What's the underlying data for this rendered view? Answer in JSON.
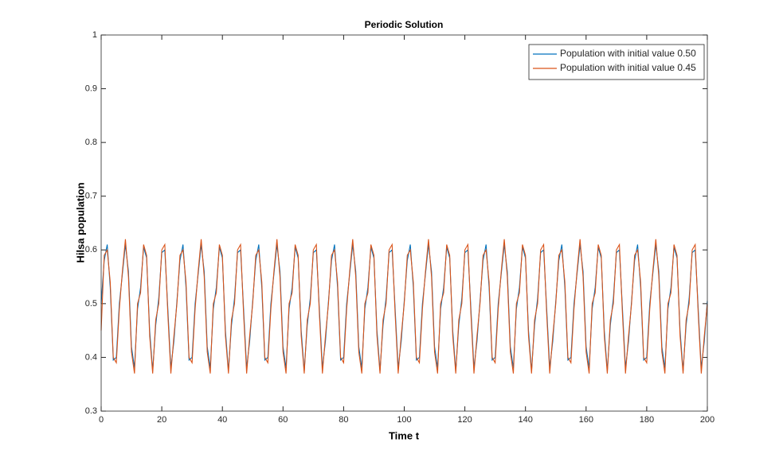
{
  "chart_data": {
    "type": "line",
    "title": "Periodic Solution",
    "x_label": "Time t",
    "y_label": "Hilsa population",
    "xlim": [
      0,
      200
    ],
    "ylim": [
      0.3,
      1
    ],
    "xticks": [
      0,
      20,
      40,
      60,
      80,
      100,
      120,
      140,
      160,
      180,
      200
    ],
    "yticks": [
      0.3,
      0.4,
      0.5,
      0.6,
      0.7,
      0.8,
      0.9,
      1
    ],
    "legend_position": "upper right",
    "x": [
      0,
      1,
      2,
      3,
      4,
      5,
      6,
      7,
      8,
      9,
      10,
      11,
      12,
      13,
      14,
      15,
      16,
      17,
      18,
      19,
      20,
      21,
      22,
      23,
      24,
      25,
      26,
      27,
      28,
      29,
      30,
      31,
      32,
      33,
      34,
      35,
      36,
      37,
      38,
      39,
      40,
      41,
      42,
      43,
      44,
      45,
      46,
      47,
      48,
      49,
      50,
      51,
      52,
      53,
      54,
      55,
      56,
      57,
      58,
      59,
      60,
      61,
      62,
      63,
      64,
      65,
      66,
      67,
      68,
      69,
      70,
      71,
      72,
      73,
      74,
      75,
      76,
      77,
      78,
      79,
      80,
      81,
      82,
      83,
      84,
      85,
      86,
      87,
      88,
      89,
      90,
      91,
      92,
      93,
      94,
      95,
      96,
      97,
      98,
      99,
      100,
      101,
      102,
      103,
      104,
      105,
      106,
      107,
      108,
      109,
      110,
      111,
      112,
      113,
      114,
      115,
      116,
      117,
      118,
      119,
      120,
      121,
      122,
      123,
      124,
      125,
      126,
      127,
      128,
      129,
      130,
      131,
      132,
      133,
      134,
      135,
      136,
      137,
      138,
      139,
      140,
      141,
      142,
      143,
      144,
      145,
      146,
      147,
      148,
      149,
      150,
      151,
      152,
      153,
      154,
      155,
      156,
      157,
      158,
      159,
      160,
      161,
      162,
      163,
      164,
      165,
      166,
      167,
      168,
      169,
      170,
      171,
      172,
      173,
      174,
      175,
      176,
      177,
      178,
      179,
      180,
      181,
      182,
      183,
      184,
      185,
      186,
      187,
      188,
      189,
      190,
      191,
      192,
      193,
      194,
      195,
      196,
      197,
      198,
      199,
      200
    ],
    "series": [
      {
        "name": "Population with initial value 0.50",
        "color": "#0072bd",
        "values": [
          0.5,
          0.58,
          0.61,
          0.53,
          0.395,
          0.4,
          0.5,
          0.555,
          0.61,
          0.56,
          0.42,
          0.38,
          0.49,
          0.53,
          0.605,
          0.585,
          0.45,
          0.375,
          0.46,
          0.51,
          0.595,
          0.6,
          0.49,
          0.38,
          0.43,
          0.505,
          0.58,
          0.61,
          0.53,
          0.395,
          0.4,
          0.5,
          0.555,
          0.61,
          0.56,
          0.42,
          0.38,
          0.49,
          0.53,
          0.605,
          0.585,
          0.45,
          0.375,
          0.46,
          0.51,
          0.595,
          0.6,
          0.49,
          0.38,
          0.43,
          0.505,
          0.58,
          0.61,
          0.53,
          0.395,
          0.4,
          0.5,
          0.555,
          0.61,
          0.56,
          0.42,
          0.38,
          0.49,
          0.53,
          0.605,
          0.585,
          0.45,
          0.375,
          0.46,
          0.51,
          0.595,
          0.6,
          0.49,
          0.38,
          0.43,
          0.505,
          0.58,
          0.61,
          0.53,
          0.395,
          0.4,
          0.5,
          0.555,
          0.61,
          0.56,
          0.42,
          0.38,
          0.49,
          0.53,
          0.605,
          0.585,
          0.45,
          0.375,
          0.46,
          0.51,
          0.595,
          0.6,
          0.49,
          0.38,
          0.43,
          0.505,
          0.58,
          0.61,
          0.53,
          0.395,
          0.4,
          0.5,
          0.555,
          0.61,
          0.56,
          0.42,
          0.38,
          0.49,
          0.53,
          0.605,
          0.585,
          0.45,
          0.375,
          0.46,
          0.51,
          0.595,
          0.6,
          0.49,
          0.38,
          0.43,
          0.505,
          0.58,
          0.61,
          0.53,
          0.395,
          0.4,
          0.5,
          0.555,
          0.61,
          0.56,
          0.42,
          0.38,
          0.49,
          0.53,
          0.605,
          0.585,
          0.45,
          0.375,
          0.46,
          0.51,
          0.595,
          0.6,
          0.49,
          0.38,
          0.43,
          0.505,
          0.58,
          0.61,
          0.53,
          0.395,
          0.4,
          0.5,
          0.555,
          0.61,
          0.56,
          0.42,
          0.38,
          0.49,
          0.53,
          0.605,
          0.585,
          0.45,
          0.375,
          0.46,
          0.51,
          0.595,
          0.6,
          0.49,
          0.38,
          0.43,
          0.505,
          0.58,
          0.61,
          0.53,
          0.395,
          0.4,
          0.5,
          0.555,
          0.61,
          0.56,
          0.42,
          0.38,
          0.49,
          0.53,
          0.605,
          0.585,
          0.45,
          0.375,
          0.46,
          0.51,
          0.595,
          0.6,
          0.49,
          0.38,
          0.43,
          0.505
        ]
      },
      {
        "name": "Population with initial value 0.45",
        "color": "#d95319",
        "values": [
          0.45,
          0.59,
          0.6,
          0.54,
          0.4,
          0.39,
          0.49,
          0.56,
          0.62,
          0.55,
          0.41,
          0.37,
          0.5,
          0.52,
          0.61,
          0.59,
          0.44,
          0.37,
          0.47,
          0.5,
          0.6,
          0.61,
          0.48,
          0.37,
          0.44,
          0.5,
          0.59,
          0.6,
          0.54,
          0.4,
          0.39,
          0.49,
          0.56,
          0.62,
          0.55,
          0.41,
          0.37,
          0.5,
          0.52,
          0.61,
          0.59,
          0.44,
          0.37,
          0.47,
          0.5,
          0.6,
          0.61,
          0.48,
          0.37,
          0.44,
          0.5,
          0.59,
          0.6,
          0.54,
          0.4,
          0.39,
          0.49,
          0.56,
          0.62,
          0.55,
          0.41,
          0.37,
          0.5,
          0.52,
          0.61,
          0.59,
          0.44,
          0.37,
          0.47,
          0.5,
          0.6,
          0.61,
          0.48,
          0.37,
          0.44,
          0.5,
          0.59,
          0.6,
          0.54,
          0.4,
          0.39,
          0.49,
          0.56,
          0.62,
          0.55,
          0.41,
          0.37,
          0.5,
          0.52,
          0.61,
          0.59,
          0.44,
          0.37,
          0.47,
          0.5,
          0.6,
          0.61,
          0.48,
          0.37,
          0.44,
          0.5,
          0.59,
          0.6,
          0.54,
          0.4,
          0.39,
          0.49,
          0.56,
          0.62,
          0.55,
          0.41,
          0.37,
          0.5,
          0.52,
          0.61,
          0.59,
          0.44,
          0.37,
          0.47,
          0.5,
          0.6,
          0.61,
          0.48,
          0.37,
          0.44,
          0.5,
          0.59,
          0.6,
          0.54,
          0.4,
          0.39,
          0.49,
          0.56,
          0.62,
          0.55,
          0.41,
          0.37,
          0.5,
          0.52,
          0.61,
          0.59,
          0.44,
          0.37,
          0.47,
          0.5,
          0.6,
          0.61,
          0.48,
          0.37,
          0.44,
          0.5,
          0.59,
          0.6,
          0.54,
          0.4,
          0.39,
          0.49,
          0.56,
          0.62,
          0.55,
          0.41,
          0.37,
          0.5,
          0.52,
          0.61,
          0.59,
          0.44,
          0.37,
          0.47,
          0.5,
          0.6,
          0.61,
          0.48,
          0.37,
          0.44,
          0.5,
          0.59,
          0.6,
          0.54,
          0.4,
          0.39,
          0.49,
          0.56,
          0.62,
          0.55,
          0.41,
          0.37,
          0.5,
          0.52,
          0.61,
          0.59,
          0.44,
          0.37,
          0.47,
          0.5,
          0.6,
          0.61,
          0.48,
          0.37,
          0.44,
          0.5
        ]
      }
    ]
  }
}
